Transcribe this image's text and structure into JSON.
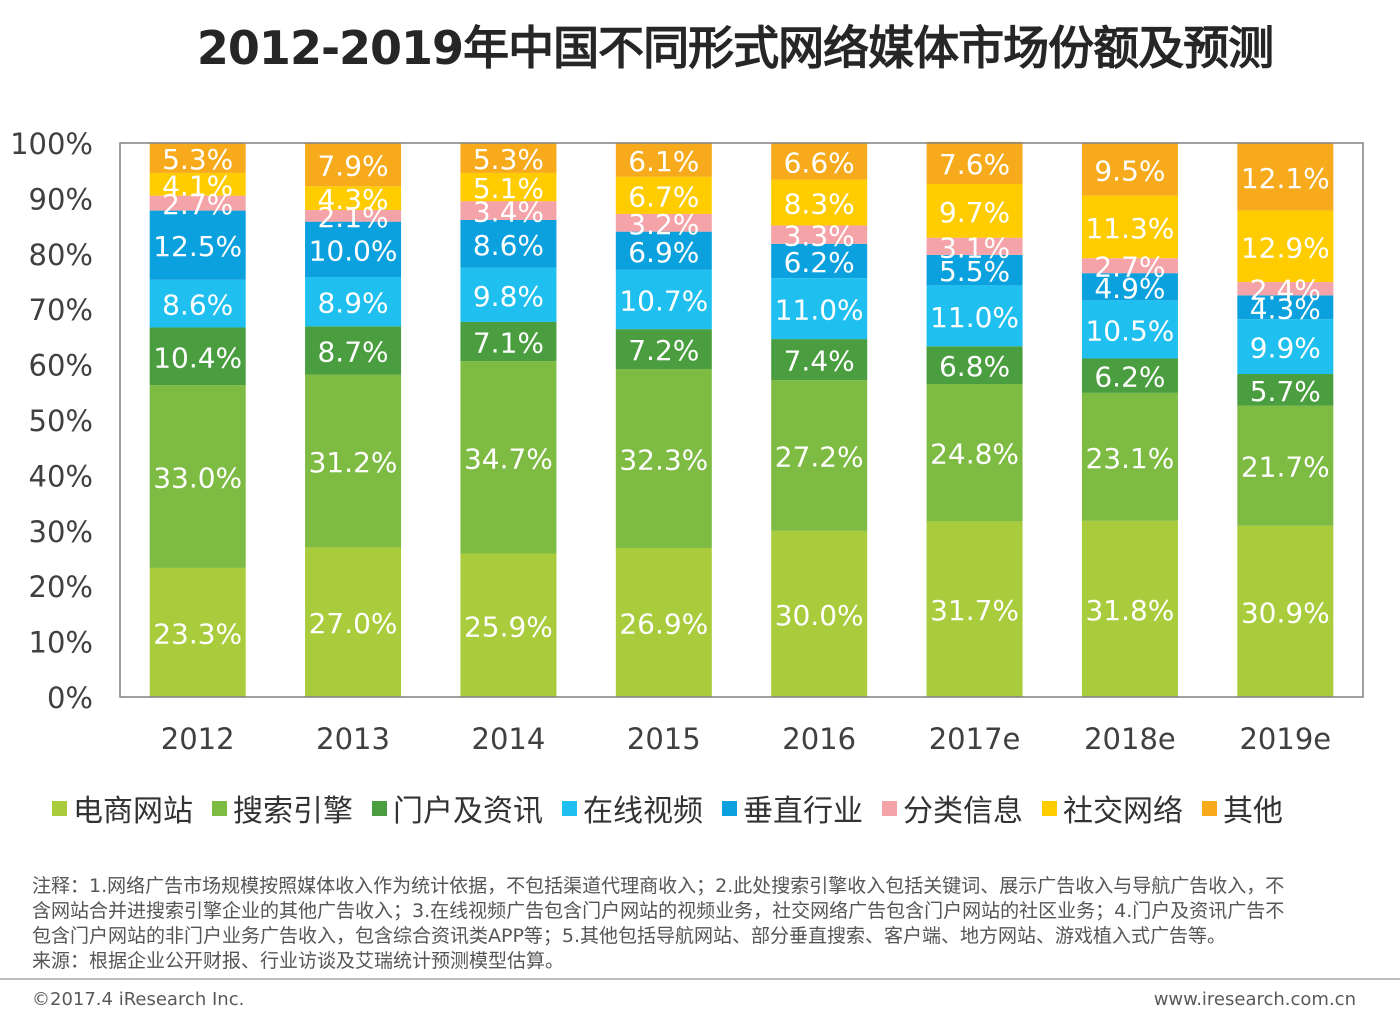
{
  "title": "2012-2019年中国不同形式网络媒体市场份额及预测",
  "chart_data": {
    "type": "bar",
    "stacked": true,
    "title": "2012-2019年中国不同形式网络媒体市场份额及预测",
    "categories": [
      "2012",
      "2013",
      "2014",
      "2015",
      "2016",
      "2017e",
      "2018e",
      "2019e"
    ],
    "ylim": [
      0,
      100
    ],
    "yticks": [
      "0%",
      "10%",
      "20%",
      "30%",
      "40%",
      "50%",
      "60%",
      "70%",
      "80%",
      "90%",
      "100%"
    ],
    "grid": false,
    "legend_position": "bottom",
    "series": [
      {
        "name": "电商网站",
        "color": "#a8cc3c",
        "values": [
          23.3,
          27.0,
          25.9,
          26.9,
          30.0,
          31.7,
          31.8,
          30.9
        ],
        "labels": [
          "23.3%",
          "27.0%",
          "25.9%",
          "26.9%",
          "30.0%",
          "31.7%",
          "31.8%",
          "30.9%"
        ]
      },
      {
        "name": "搜索引擎",
        "color": "#7dbb42",
        "values": [
          33.0,
          31.2,
          34.7,
          32.3,
          27.2,
          24.8,
          23.1,
          21.7
        ],
        "labels": [
          "33.0%",
          "31.2%",
          "34.7%",
          "32.3%",
          "27.2%",
          "24.8%",
          "23.1%",
          "21.7%"
        ]
      },
      {
        "name": "门户及资讯",
        "color": "#4a9e3f",
        "values": [
          10.4,
          8.7,
          7.1,
          7.2,
          7.4,
          6.8,
          6.2,
          5.7
        ],
        "labels": [
          "10.4%",
          "8.7%",
          "7.1%",
          "7.2%",
          "7.4%",
          "6.8%",
          "6.2%",
          "5.7%"
        ]
      },
      {
        "name": "在线视频",
        "color": "#1fc0ef",
        "values": [
          8.6,
          8.9,
          9.8,
          10.7,
          11.0,
          11.0,
          10.5,
          9.9
        ],
        "labels": [
          "8.6%",
          "8.9%",
          "9.8%",
          "10.7%",
          "11.0%",
          "11.0%",
          "10.5%",
          "9.9%"
        ]
      },
      {
        "name": "垂直行业",
        "color": "#0aa1de",
        "values": [
          12.5,
          10.0,
          8.6,
          6.9,
          6.2,
          5.5,
          4.9,
          4.3
        ],
        "labels": [
          "12.5%",
          "10.0%",
          "8.6%",
          "6.9%",
          "6.2%",
          "5.5%",
          "4.9%",
          "4.3%"
        ]
      },
      {
        "name": "分类信息",
        "color": "#f4a3a8",
        "values": [
          2.7,
          2.1,
          3.4,
          3.2,
          3.3,
          3.1,
          2.7,
          2.4
        ],
        "labels": [
          "2.7%",
          "2.1%",
          "3.4%",
          "3.2%",
          "3.3%",
          "3.1%",
          "2.7%",
          "2.4%"
        ]
      },
      {
        "name": "社交网络",
        "color": "#ffcc00",
        "values": [
          4.1,
          4.3,
          5.1,
          6.7,
          8.3,
          9.7,
          11.3,
          12.9
        ],
        "labels": [
          "4.1%",
          "4.3%",
          "5.1%",
          "6.7%",
          "8.3%",
          "9.7%",
          "11.3%",
          "12.9%"
        ]
      },
      {
        "name": "其他",
        "color": "#f7ab1c",
        "values": [
          5.3,
          7.9,
          5.3,
          6.1,
          6.6,
          7.6,
          9.5,
          12.1
        ],
        "labels": [
          "5.3%",
          "7.9%",
          "5.3%",
          "6.1%",
          "6.6%",
          "7.6%",
          "9.5%",
          "12.1%"
        ]
      }
    ]
  },
  "colors": {
    "axis": "#808080",
    "tick_text": "#404040",
    "data_label": "#ffffff"
  },
  "notes": [
    "注释：1.网络广告市场规模按照媒体收入作为统计依据，不包括渠道代理商收入；2.此处搜索引擎收入包括关键词、展示广告收入与导航广告收入，不",
    "含网站合并进搜索引擎企业的其他广告收入；3.在线视频广告包含门户网站的视频业务，社交网络广告包含门户网站的社区业务；4.门户及资讯广告不",
    "包含门户网站的非门户业务广告收入，包含综合资讯类APP等；5.其他包括导航网站、部分垂直搜索、客户端、地方网站、游戏植入式广告等。",
    "来源：根据企业公开财报、行业访谈及艾瑞统计预测模型估算。"
  ],
  "footer": {
    "copyright": "©2017.4 iResearch Inc.",
    "website": "www.iresearch.com.cn"
  }
}
